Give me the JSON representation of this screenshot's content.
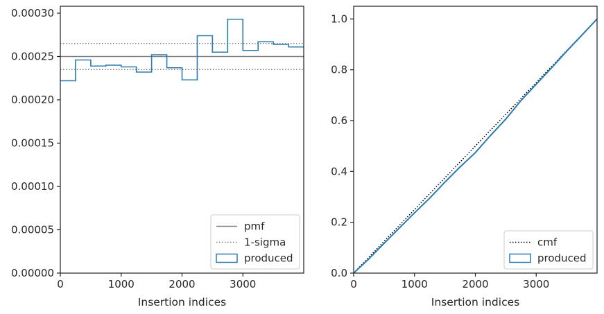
{
  "chart_data": [
    {
      "type": "line",
      "xlabel": "Insertion indices",
      "ylabel": "",
      "xlim": [
        0,
        4000
      ],
      "ylim": [
        0,
        0.000308
      ],
      "xticks": [
        0,
        1000,
        2000,
        3000
      ],
      "xtick_labels": [
        "0",
        "1000",
        "2000",
        "3000"
      ],
      "yticks": [
        0,
        5e-05,
        0.0001,
        0.00015,
        0.0002,
        0.00025,
        0.0003
      ],
      "ytick_labels": [
        "0.00000",
        "0.00005",
        "0.00010",
        "0.00015",
        "0.00020",
        "0.00025",
        "0.00030"
      ],
      "legend_position": "lower-right",
      "pmf": {
        "name": "pmf",
        "value": 0.00025,
        "color": "#808080",
        "style": "solid"
      },
      "sigma": {
        "name": "1-sigma",
        "values": [
          0.000235,
          0.000265
        ],
        "color": "#808080",
        "style": "dotted"
      },
      "produced": {
        "name": "produced",
        "color": "#2b7bb0",
        "bin_edges": [
          0,
          250,
          500,
          750,
          1000,
          1250,
          1500,
          1750,
          2000,
          2250,
          2500,
          2750,
          3000,
          3250,
          3500,
          3750,
          4000
        ],
        "values": [
          0.000222,
          0.000246,
          0.000239,
          0.00024,
          0.000238,
          0.000232,
          0.000252,
          0.000237,
          0.000223,
          0.000274,
          0.000255,
          0.000293,
          0.000257,
          0.000267,
          0.000264,
          0.000261
        ]
      }
    },
    {
      "type": "line",
      "xlabel": "Insertion indices",
      "ylabel": "",
      "xlim": [
        0,
        4000
      ],
      "ylim": [
        0,
        1.05
      ],
      "xticks": [
        0,
        1000,
        2000,
        3000
      ],
      "xtick_labels": [
        "0",
        "1000",
        "2000",
        "3000"
      ],
      "yticks": [
        0,
        0.2,
        0.4,
        0.6,
        0.8,
        1.0
      ],
      "ytick_labels": [
        "0.0",
        "0.2",
        "0.4",
        "0.6",
        "0.8",
        "1.0"
      ],
      "legend_position": "lower-right",
      "cmf": {
        "name": "cmf",
        "x": [
          0,
          4000
        ],
        "y": [
          0,
          1.0
        ],
        "color": "#000000",
        "style": "dotted"
      },
      "produced": {
        "name": "produced",
        "color": "#2b7bb0",
        "x": [
          0,
          250,
          500,
          750,
          1000,
          1250,
          1500,
          1750,
          2000,
          2250,
          2500,
          2750,
          3000,
          3250,
          3500,
          3750,
          4000
        ],
        "y": [
          0,
          0.056,
          0.117,
          0.177,
          0.237,
          0.295,
          0.358,
          0.418,
          0.474,
          0.542,
          0.606,
          0.679,
          0.743,
          0.807,
          0.873,
          0.936,
          1.0
        ]
      }
    }
  ]
}
